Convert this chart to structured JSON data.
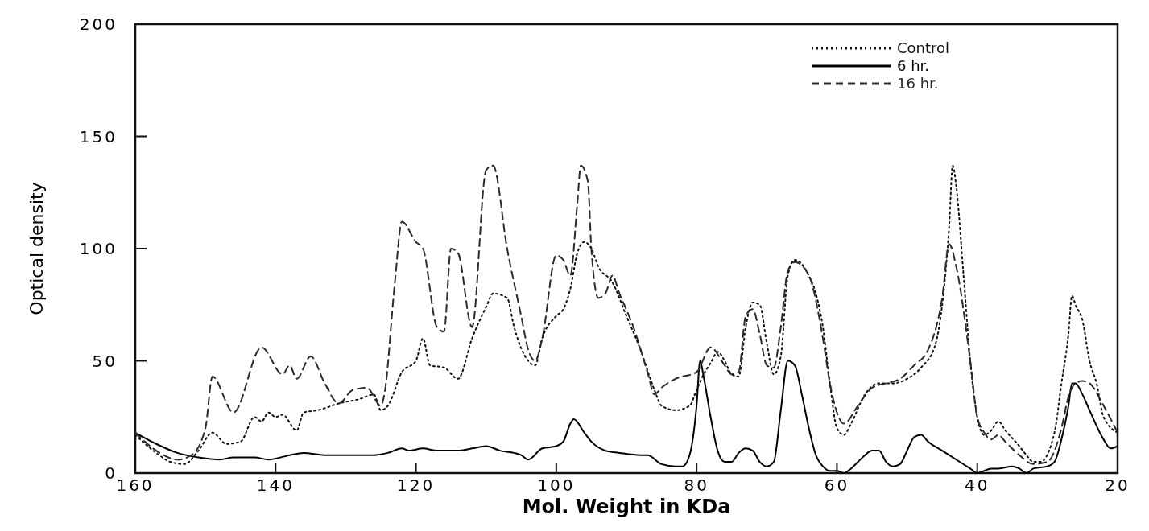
{
  "chart_data": {
    "type": "line",
    "xlabel": "Mol. Weight in KDa",
    "ylabel": "Optical density",
    "xlim": [
      160,
      20
    ],
    "xticks": [
      160,
      140,
      120,
      100,
      80,
      60,
      40,
      20
    ],
    "ylim": [
      0,
      200
    ],
    "yticks": [
      0,
      50,
      100,
      150,
      200
    ],
    "legend": "top right",
    "grid": false,
    "series": [
      {
        "name": "Control",
        "color": "#111111",
        "line_style": "dotted",
        "x": [
          160,
          157,
          155,
          153,
          151,
          149,
          147,
          145,
          143,
          142,
          141,
          140,
          139,
          137,
          136,
          134,
          131,
          128,
          126,
          125,
          124,
          122,
          120,
          119,
          118,
          116,
          114,
          112,
          110,
          109,
          107,
          106,
          104,
          103,
          102,
          100,
          99,
          98,
          97,
          96,
          95,
          94,
          92,
          90,
          88,
          86,
          85,
          83,
          81,
          80,
          79,
          78,
          77,
          76,
          75,
          74,
          73,
          72,
          71,
          70,
          69,
          68,
          67,
          66,
          64,
          63,
          62,
          61,
          60,
          59,
          58,
          56,
          54,
          52,
          50,
          48,
          46,
          45,
          44,
          43.5,
          43,
          42,
          41,
          40,
          39,
          38,
          37,
          36,
          34,
          33,
          32,
          31,
          29,
          28,
          27,
          26.5,
          26,
          25,
          24,
          23,
          22,
          20
        ],
        "values": [
          17,
          9,
          5,
          4,
          10,
          18,
          13,
          14,
          25,
          23,
          27,
          25,
          26,
          19,
          27,
          28,
          31,
          33,
          35,
          28,
          30,
          45,
          50,
          60,
          48,
          47,
          42,
          60,
          74,
          80,
          78,
          65,
          50,
          48,
          60,
          70,
          73,
          82,
          98,
          103,
          100,
          92,
          85,
          70,
          55,
          37,
          30,
          28,
          30,
          37,
          44,
          49,
          54,
          50,
          44,
          43,
          65,
          76,
          75,
          58,
          44,
          52,
          88,
          95,
          88,
          80,
          65,
          40,
          20,
          17,
          22,
          35,
          40,
          40,
          42,
          47,
          57,
          75,
          110,
          137,
          128,
          90,
          50,
          25,
          17,
          19,
          23,
          19,
          12,
          8,
          5,
          5,
          18,
          40,
          62,
          79,
          75,
          68,
          50,
          40,
          25,
          18
        ]
      },
      {
        "name": "6 hr.",
        "color": "#000000",
        "line_style": "solid",
        "x": [
          160,
          157,
          154,
          151,
          148,
          146,
          143,
          141,
          138,
          136,
          133,
          131,
          128,
          126,
          124,
          122,
          121,
          119,
          117,
          114,
          112,
          110,
          108,
          106,
          105,
          104,
          102,
          100,
          99,
          98,
          97.5,
          96,
          95,
          93,
          91,
          88,
          87,
          85,
          83,
          82,
          81,
          80,
          79.5,
          79,
          78,
          77,
          76,
          75,
          74,
          73,
          72,
          71,
          70,
          69,
          68,
          67,
          66,
          65,
          64,
          63,
          62,
          61,
          60,
          59,
          58,
          57,
          56,
          55,
          54,
          53,
          52,
          51,
          50,
          49,
          48,
          47,
          45,
          43,
          41,
          40,
          38,
          37,
          35,
          34,
          33,
          32,
          30,
          29,
          28,
          27,
          26.5,
          26,
          25,
          24,
          22,
          21,
          20
        ],
        "values": [
          18,
          13,
          9,
          7,
          6,
          7,
          7,
          6,
          8,
          9,
          8,
          8,
          8,
          8,
          9,
          11,
          10,
          11,
          10,
          10,
          11,
          12,
          10,
          9,
          8,
          6,
          11,
          12,
          14,
          22,
          24,
          18,
          14,
          10,
          9,
          8,
          8,
          4,
          3,
          3,
          8,
          30,
          50,
          43,
          25,
          10,
          5,
          5,
          9,
          11,
          10,
          5,
          3,
          5,
          28,
          50,
          48,
          35,
          20,
          8,
          3,
          1,
          1,
          0,
          2,
          5,
          8,
          10,
          10,
          5,
          3,
          4,
          10,
          16,
          17,
          14,
          10,
          6,
          2,
          0,
          2,
          2,
          3,
          2,
          0,
          2,
          3,
          5,
          15,
          30,
          40,
          40,
          35,
          28,
          15,
          11,
          12
        ]
      },
      {
        "name": "16 hr.",
        "color": "#2b2b2b",
        "line_style": "dashed",
        "x": [
          160,
          157,
          154,
          152,
          150,
          149,
          146,
          142,
          139,
          138,
          137,
          135,
          133,
          131,
          129,
          127,
          125,
          124.5,
          123,
          122,
          120,
          119,
          117,
          116,
          115,
          114,
          112,
          110,
          109,
          107,
          105,
          104,
          103,
          102,
          100,
          99,
          98,
          97,
          96.5,
          95.5,
          95,
          94,
          93,
          92,
          91,
          89,
          87,
          86,
          85,
          83,
          80,
          78,
          76,
          75,
          74,
          73,
          72,
          71,
          70,
          69,
          68,
          67,
          66,
          64,
          62,
          61,
          60,
          59,
          57,
          55,
          53,
          51,
          49,
          47,
          45,
          44,
          43,
          41,
          40,
          39,
          38,
          37,
          36,
          34,
          32,
          30,
          28,
          27,
          26,
          25,
          24,
          22,
          20
        ],
        "values": [
          18,
          10,
          6,
          8,
          20,
          43,
          27,
          56,
          44,
          48,
          42,
          52,
          40,
          31,
          37,
          38,
          30,
          35,
          85,
          112,
          103,
          100,
          65,
          63,
          100,
          98,
          65,
          135,
          137,
          100,
          70,
          55,
          50,
          60,
          97,
          95,
          88,
          120,
          137,
          130,
          100,
          78,
          80,
          88,
          80,
          65,
          45,
          35,
          38,
          42,
          45,
          56,
          48,
          44,
          45,
          70,
          73,
          62,
          48,
          47,
          65,
          90,
          94,
          88,
          60,
          40,
          27,
          22,
          30,
          38,
          40,
          42,
          48,
          55,
          78,
          102,
          92,
          50,
          25,
          18,
          15,
          17,
          14,
          8,
          4,
          5,
          20,
          34,
          40,
          41,
          40,
          30,
          18
        ]
      }
    ]
  }
}
